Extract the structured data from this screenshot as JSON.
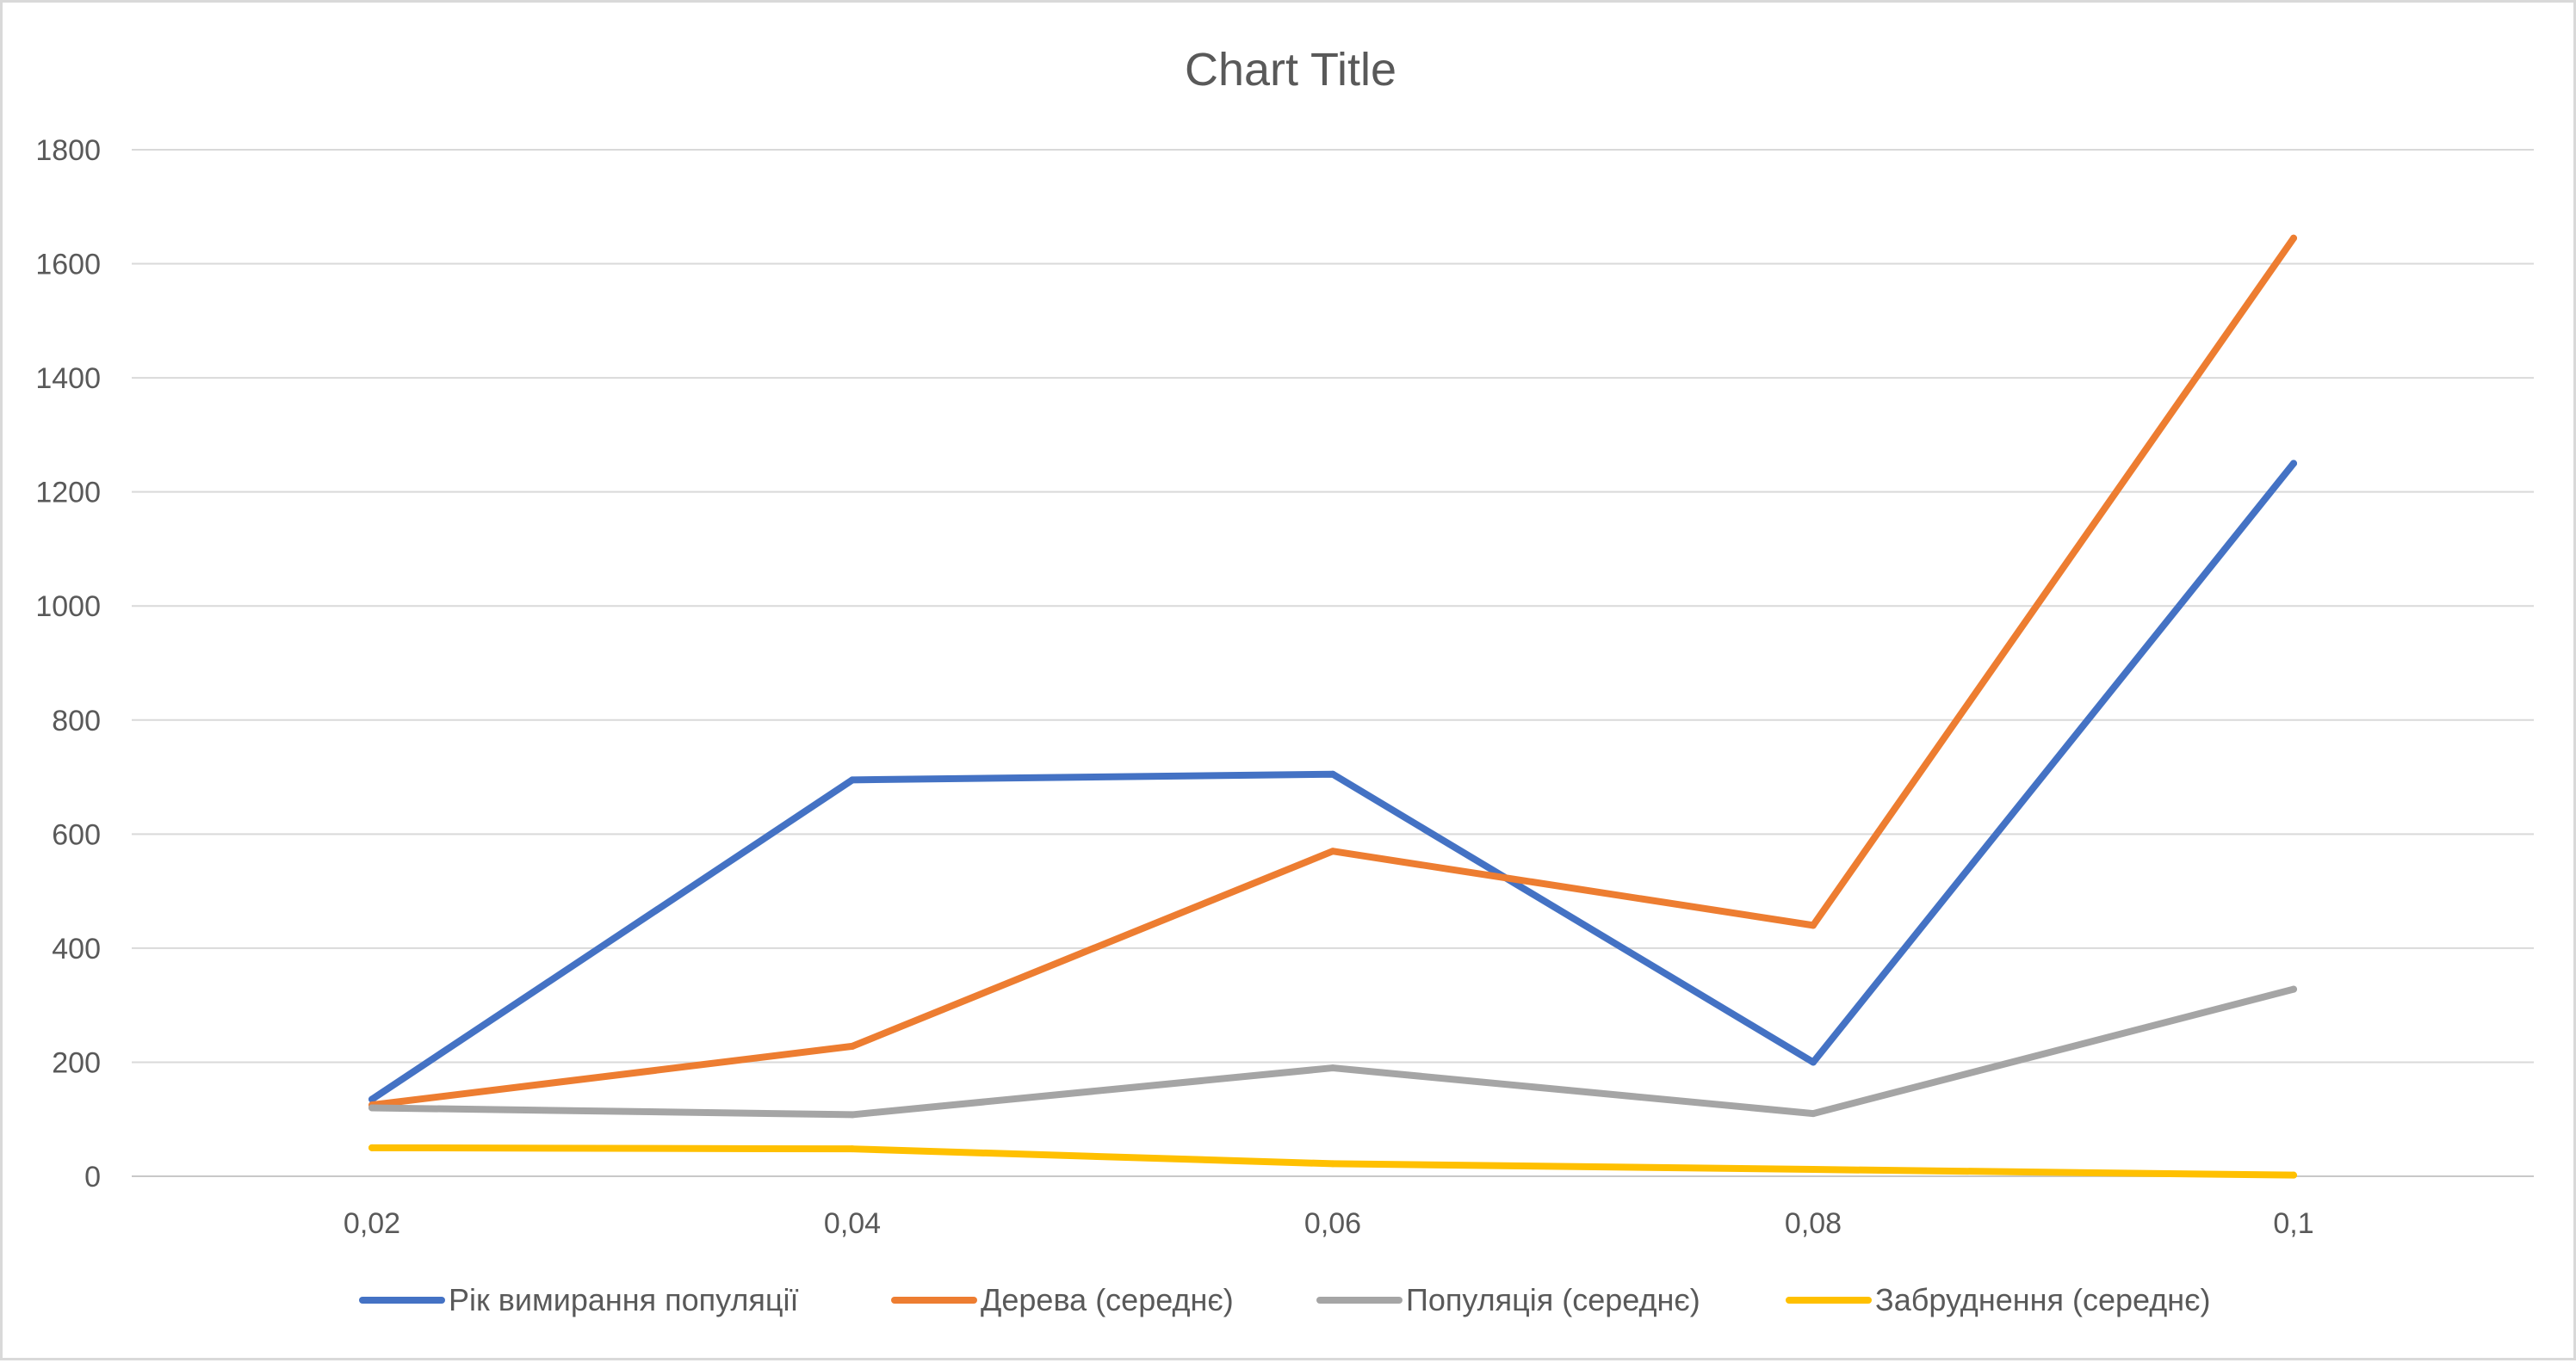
{
  "chart_data": {
    "type": "line",
    "title": "Chart Title",
    "xlabel": "",
    "ylabel": "",
    "categories": [
      "0,02",
      "0,04",
      "0,06",
      "0,08",
      "0,1"
    ],
    "ylim": [
      0,
      1800
    ],
    "yticks": [
      0,
      200,
      400,
      600,
      800,
      1000,
      1200,
      1400,
      1600,
      1800
    ],
    "grid": true,
    "legend_position": "bottom",
    "series": [
      {
        "name": "Рік вимирання популяції",
        "color": "#4472C4",
        "values": [
          135,
          695,
          705,
          200,
          1250
        ]
      },
      {
        "name": "Дерева (середнє)",
        "color": "#ED7D31",
        "values": [
          125,
          228,
          570,
          440,
          1645
        ]
      },
      {
        "name": "Популяція (середнє)",
        "color": "#A5A5A5",
        "values": [
          120,
          108,
          190,
          110,
          328
        ]
      },
      {
        "name": "Забруднення (середнє)",
        "color": "#FFC000",
        "values": [
          50,
          48,
          22,
          12,
          2
        ]
      }
    ]
  }
}
